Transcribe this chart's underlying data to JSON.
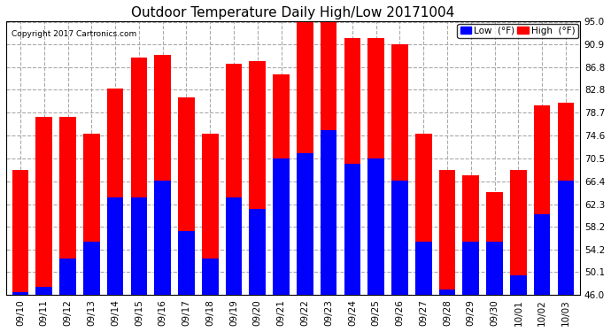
{
  "title": "Outdoor Temperature Daily High/Low 20171004",
  "copyright": "Copyright 2017 Cartronics.com",
  "legend_low": "Low  (°F)",
  "legend_high": "High  (°F)",
  "dates": [
    "09/10",
    "09/11",
    "09/12",
    "09/13",
    "09/14",
    "09/15",
    "09/16",
    "09/17",
    "09/18",
    "09/19",
    "09/20",
    "09/21",
    "09/22",
    "09/23",
    "09/24",
    "09/25",
    "09/26",
    "09/27",
    "09/28",
    "09/29",
    "09/30",
    "10/01",
    "10/02",
    "10/03"
  ],
  "highs": [
    68.5,
    78.0,
    78.0,
    75.0,
    83.0,
    88.5,
    89.0,
    81.5,
    75.0,
    87.5,
    88.0,
    85.5,
    95.0,
    95.0,
    92.0,
    92.0,
    91.0,
    75.0,
    68.5,
    67.5,
    64.5,
    68.5,
    80.0,
    80.5
  ],
  "lows": [
    46.5,
    47.5,
    52.5,
    55.5,
    63.5,
    63.5,
    66.5,
    57.5,
    52.5,
    63.5,
    61.5,
    70.5,
    71.5,
    75.5,
    69.5,
    70.5,
    66.5,
    55.5,
    47.0,
    55.5,
    55.5,
    49.5,
    60.5,
    66.5
  ],
  "ylim": [
    46.0,
    95.0
  ],
  "yticks": [
    46.0,
    50.1,
    54.2,
    58.2,
    62.3,
    66.4,
    70.5,
    74.6,
    78.7,
    82.8,
    86.8,
    90.9,
    95.0
  ],
  "high_color": "#ff0000",
  "low_color": "#0000ff",
  "background_color": "#ffffff",
  "grid_color": "#aaaaaa",
  "title_fontsize": 11,
  "tick_fontsize": 7.5,
  "bar_width": 0.7,
  "figwidth": 6.9,
  "figheight": 3.75,
  "dpi": 100
}
